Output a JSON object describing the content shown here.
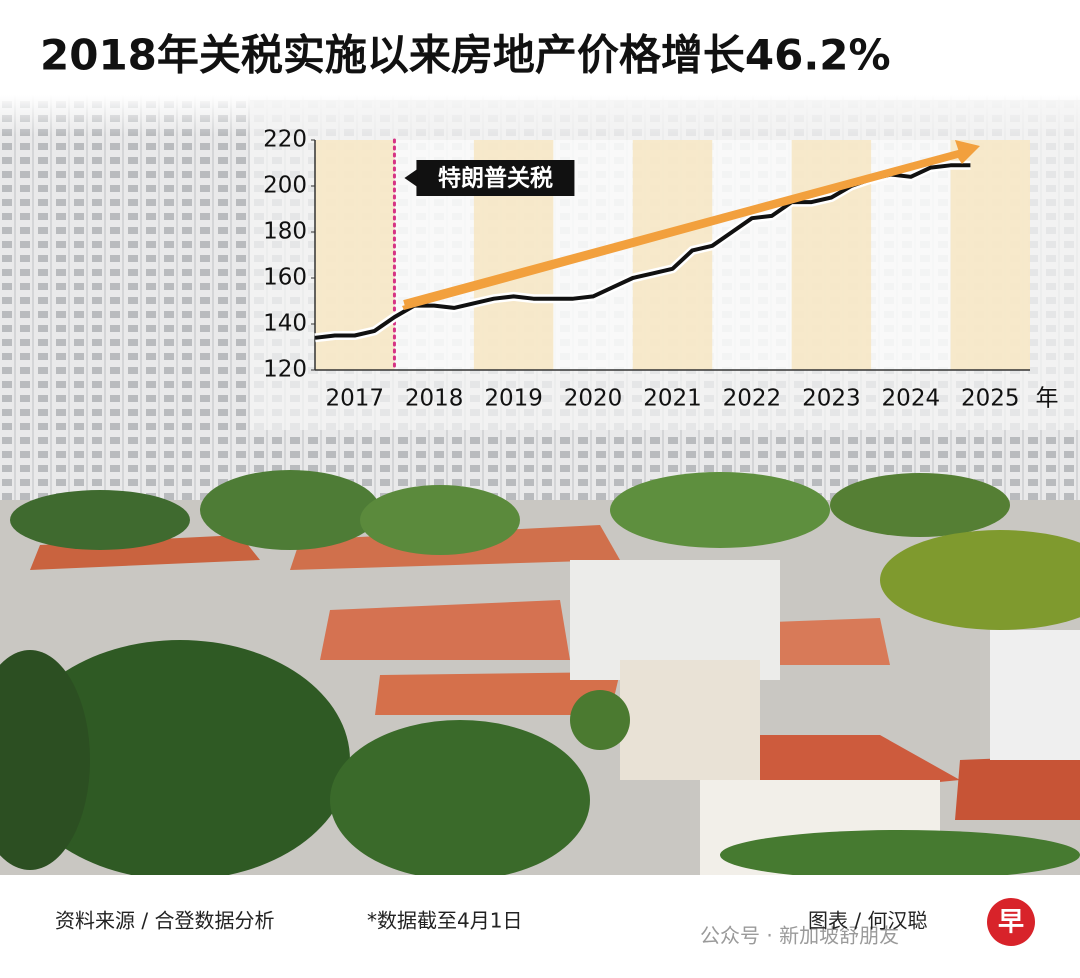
{
  "chart_data": {
    "type": "line",
    "title": "2018年关税实施以来房地产价格增长46.2%",
    "x": [
      2017,
      2017.25,
      2017.5,
      2017.75,
      2018,
      2018.25,
      2018.5,
      2018.75,
      2019,
      2019.25,
      2019.5,
      2019.75,
      2020,
      2020.25,
      2020.5,
      2020.75,
      2021,
      2021.25,
      2021.5,
      2021.75,
      2022,
      2022.25,
      2022.5,
      2022.75,
      2023,
      2023.25,
      2023.5,
      2023.75,
      2024,
      2024.25,
      2024.5,
      2024.75,
      2025,
      2025.25
    ],
    "values": [
      134,
      135,
      135,
      137,
      143,
      148,
      148,
      147,
      149,
      151,
      152,
      151,
      151,
      151,
      152,
      156,
      160,
      162,
      164,
      172,
      174,
      180,
      186,
      187,
      193,
      193,
      195,
      200,
      203,
      205,
      204,
      208,
      209,
      209
    ],
    "color": "#111111",
    "xlim": [
      2017,
      2026
    ],
    "xticks": [
      2017,
      2018,
      2019,
      2020,
      2021,
      2022,
      2023,
      2024,
      2025
    ],
    "x_unit": "年",
    "ylim": [
      120,
      220
    ],
    "yticks": [
      120,
      140,
      160,
      180,
      200,
      220
    ],
    "annotation": {
      "text": "特朗普关税",
      "x": 2018
    },
    "source": "资料来源 / 合登数据分析",
    "note": "*数据截至4月1日",
    "credit": "图表 / 何汉聪",
    "watermark": "公众号 · 新加坡舒朋友",
    "logo": "早"
  }
}
